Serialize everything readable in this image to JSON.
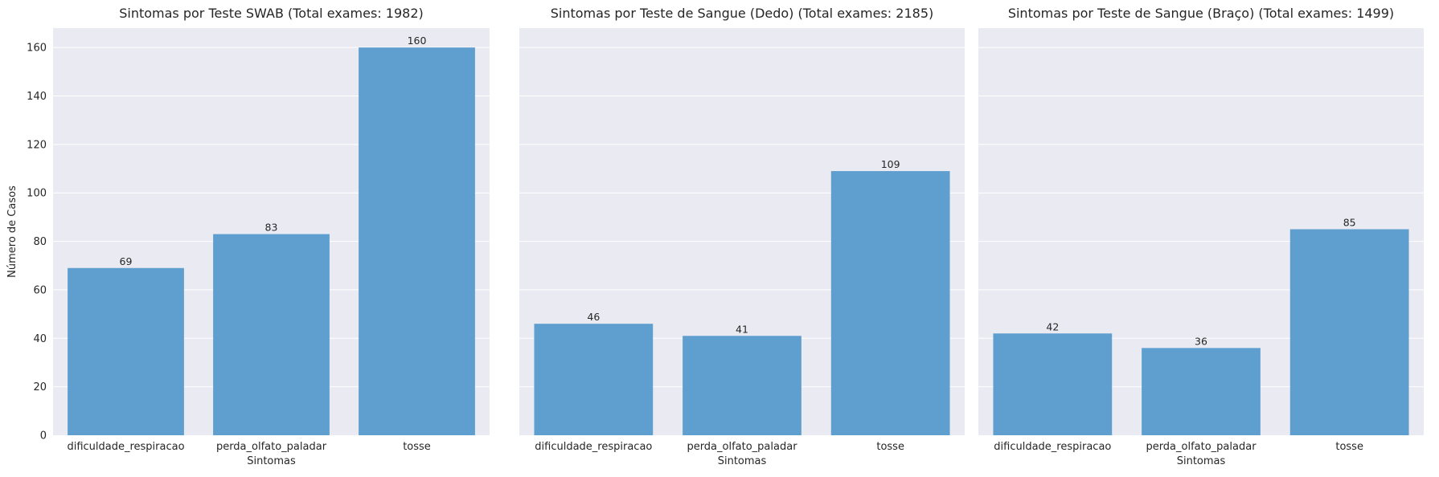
{
  "chart_data": [
    {
      "type": "bar",
      "title": "Sintomas por Teste SWAB (Total exames: 1982)",
      "xlabel": "Sintomas",
      "ylabel": "Número de Casos",
      "categories": [
        "dificuldade_respiracao",
        "perda_olfato_paladar",
        "tosse"
      ],
      "values": [
        69,
        83,
        160
      ],
      "ylim": [
        0,
        168
      ],
      "yticks": [
        0,
        20,
        40,
        60,
        80,
        100,
        120,
        140,
        160
      ],
      "grid": true,
      "bar_color": "#5f9fd0"
    },
    {
      "type": "bar",
      "title": "Sintomas por Teste de Sangue (Dedo) (Total exames: 2185)",
      "xlabel": "Sintomas",
      "ylabel": "",
      "categories": [
        "dificuldade_respiracao",
        "perda_olfato_paladar",
        "tosse"
      ],
      "values": [
        46,
        41,
        109
      ],
      "ylim": [
        0,
        168
      ],
      "yticks": [
        0,
        20,
        40,
        60,
        80,
        100,
        120,
        140,
        160
      ],
      "grid": true,
      "bar_color": "#5f9fd0"
    },
    {
      "type": "bar",
      "title": "Sintomas por Teste de Sangue (Braço) (Total exames: 1499)",
      "xlabel": "Sintomas",
      "ylabel": "",
      "categories": [
        "dificuldade_respiracao",
        "perda_olfato_paladar",
        "tosse"
      ],
      "values": [
        42,
        36,
        85
      ],
      "ylim": [
        0,
        168
      ],
      "yticks": [
        0,
        20,
        40,
        60,
        80,
        100,
        120,
        140,
        160
      ],
      "grid": true,
      "bar_color": "#5f9fd0"
    }
  ],
  "colors": {
    "panel_background": "#eaeaf2",
    "grid": "#ffffff",
    "text": "#262626"
  }
}
